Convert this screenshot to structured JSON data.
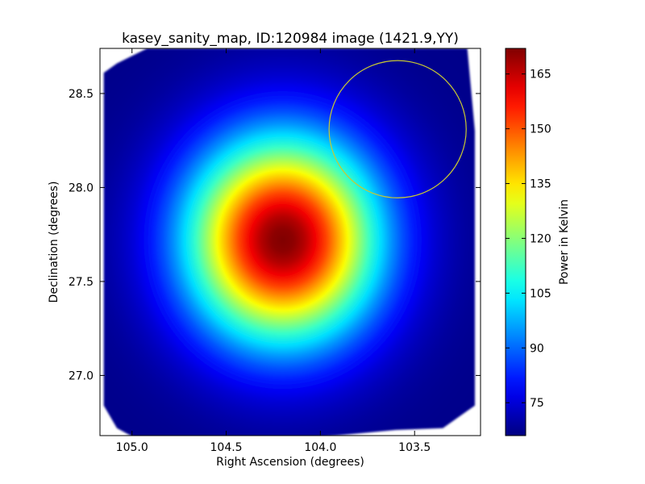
{
  "chart_data": {
    "type": "heatmap",
    "title": "kasey_sanity_map, ID:120984 image (1421.9,YY)",
    "xlabel": "Right Ascension (degrees)",
    "ylabel": "Declination (degrees)",
    "xlim": [
      105.17,
      103.15
    ],
    "ylim": [
      26.68,
      28.74
    ],
    "x_ticks": [
      105.0,
      104.5,
      104.0,
      103.5
    ],
    "x_tick_labels": [
      "105.0",
      "104.5",
      "104.0",
      "103.5"
    ],
    "y_ticks": [
      27.0,
      27.5,
      28.0,
      28.5
    ],
    "y_tick_labels": [
      "27.0",
      "27.5",
      "28.0",
      "28.5"
    ],
    "colormap": "jet",
    "colorbar": {
      "label": "Power in Kelvin",
      "range": [
        66,
        172
      ],
      "ticks": [
        75,
        90,
        105,
        120,
        135,
        150,
        165
      ],
      "tick_labels": [
        "75",
        "90",
        "105",
        "120",
        "135",
        "150",
        "165"
      ]
    },
    "peak": {
      "ra": 104.2,
      "dec": 27.72,
      "value": 172
    },
    "background_value": 67,
    "footprint": [
      [
        105.15,
        28.61
      ],
      [
        105.08,
        28.66
      ],
      [
        104.92,
        28.74
      ],
      [
        103.22,
        28.74
      ],
      [
        103.18,
        28.3
      ],
      [
        103.18,
        26.84
      ],
      [
        103.35,
        26.72
      ],
      [
        103.6,
        26.71
      ],
      [
        103.92,
        26.68
      ],
      [
        104.22,
        26.66
      ],
      [
        104.55,
        26.66
      ],
      [
        104.97,
        26.66
      ],
      [
        105.08,
        26.72
      ],
      [
        105.15,
        26.84
      ]
    ],
    "circle": {
      "ra": 103.59,
      "dec": 28.31,
      "radius_deg": 0.365,
      "color": "#c8c832"
    }
  }
}
